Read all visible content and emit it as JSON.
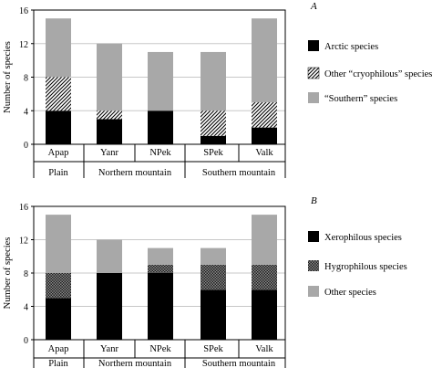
{
  "chart_data": [
    {
      "type": "bar",
      "stacked": true,
      "panel_label": "A",
      "categories": [
        "Apap",
        "Yanr",
        "NPek",
        "SPek",
        "Valk"
      ],
      "groups": [
        {
          "label": "Plain",
          "categories": [
            "Apap"
          ]
        },
        {
          "label": "Northern mountain",
          "categories": [
            "Yanr",
            "NPek"
          ]
        },
        {
          "label": "Southern mountain",
          "categories": [
            "SPek",
            "Valk"
          ]
        }
      ],
      "ylabel": "Number of species",
      "ylim": [
        0,
        16
      ],
      "yticks": [
        0,
        4,
        8,
        12,
        16
      ],
      "grid": true,
      "legend_position": "right",
      "series": [
        {
          "name": "Arctic species",
          "values": [
            4,
            3,
            4,
            1,
            2
          ],
          "color": "#000000",
          "pattern": "solid"
        },
        {
          "name": "Other “cryophilous” species",
          "values": [
            4,
            1,
            0,
            3,
            3
          ],
          "color": "#ffffff",
          "pattern": "diagonal-hatch"
        },
        {
          "name": "“Southern” species",
          "values": [
            7,
            8,
            7,
            7,
            10
          ],
          "color": "#a8a8a8",
          "pattern": "solid"
        }
      ]
    },
    {
      "type": "bar",
      "stacked": true,
      "panel_label": "B",
      "categories": [
        "Apap",
        "Yanr",
        "NPek",
        "SPek",
        "Valk"
      ],
      "groups": [
        {
          "label": "Plain",
          "categories": [
            "Apap"
          ]
        },
        {
          "label": "Northern mountain",
          "categories": [
            "Yanr",
            "NPek"
          ]
        },
        {
          "label": "Southern mountain",
          "categories": [
            "SPek",
            "Valk"
          ]
        }
      ],
      "ylabel": "Number of species",
      "ylim": [
        0,
        16
      ],
      "yticks": [
        0,
        4,
        8,
        12,
        16
      ],
      "grid": true,
      "legend_position": "right",
      "series": [
        {
          "name": "Xerophilous species",
          "values": [
            5,
            8,
            8,
            6,
            6
          ],
          "color": "#000000",
          "pattern": "solid"
        },
        {
          "name": "Hygrophilous species",
          "values": [
            3,
            0,
            1,
            3,
            3
          ],
          "color": "#555555",
          "pattern": "crosshatch"
        },
        {
          "name": "Other species",
          "values": [
            7,
            4,
            2,
            2,
            6
          ],
          "color": "#a8a8a8",
          "pattern": "solid"
        }
      ]
    }
  ]
}
